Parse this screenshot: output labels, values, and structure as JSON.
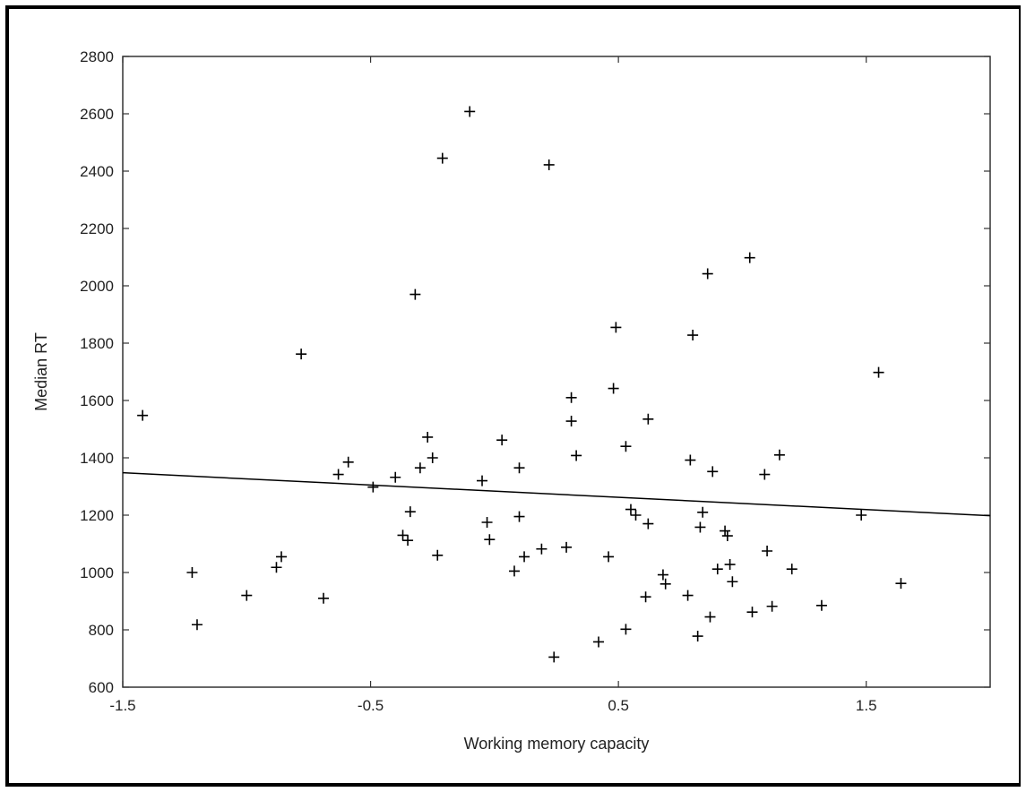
{
  "chart_data": {
    "type": "scatter",
    "title": "",
    "xlabel": "Working memory capacity",
    "ylabel": "Median RT",
    "xlim": [
      -1.5,
      2.0
    ],
    "ylim": [
      600,
      2800
    ],
    "xticks": [
      -1.5,
      -0.5,
      0.5,
      1.5
    ],
    "xtick_labels": [
      "-1.5",
      "-0.5",
      "0.5",
      "1.5"
    ],
    "yticks": [
      600,
      800,
      1000,
      1200,
      1400,
      1600,
      1800,
      2000,
      2200,
      2400,
      2600,
      2800
    ],
    "ytick_labels": [
      "600",
      "800",
      "1000",
      "1200",
      "1400",
      "1600",
      "1800",
      "2000",
      "2200",
      "2400",
      "2600",
      "2800"
    ],
    "grid": false,
    "marker": "+",
    "colors": {
      "ink": "#000000",
      "axis": "#333333"
    },
    "fit_line": {
      "x": [
        -1.5,
        2.0
      ],
      "y": [
        1348,
        1198
      ]
    },
    "points": [
      {
        "x": -1.42,
        "y": 1548
      },
      {
        "x": -1.22,
        "y": 1000
      },
      {
        "x": -1.2,
        "y": 818
      },
      {
        "x": -1.0,
        "y": 920
      },
      {
        "x": -0.88,
        "y": 1018
      },
      {
        "x": -0.86,
        "y": 1055
      },
      {
        "x": -0.78,
        "y": 1762
      },
      {
        "x": -0.69,
        "y": 910
      },
      {
        "x": -0.63,
        "y": 1342
      },
      {
        "x": -0.59,
        "y": 1385
      },
      {
        "x": -0.49,
        "y": 1298
      },
      {
        "x": -0.4,
        "y": 1332
      },
      {
        "x": -0.37,
        "y": 1130
      },
      {
        "x": -0.35,
        "y": 1112
      },
      {
        "x": -0.34,
        "y": 1212
      },
      {
        "x": -0.32,
        "y": 1970
      },
      {
        "x": -0.3,
        "y": 1365
      },
      {
        "x": -0.27,
        "y": 1472
      },
      {
        "x": -0.25,
        "y": 1400
      },
      {
        "x": -0.23,
        "y": 1060
      },
      {
        "x": -0.21,
        "y": 2445
      },
      {
        "x": -0.1,
        "y": 2608
      },
      {
        "x": -0.05,
        "y": 1320
      },
      {
        "x": -0.03,
        "y": 1175
      },
      {
        "x": -0.02,
        "y": 1115
      },
      {
        "x": 0.03,
        "y": 1462
      },
      {
        "x": 0.08,
        "y": 1005
      },
      {
        "x": 0.1,
        "y": 1365
      },
      {
        "x": 0.1,
        "y": 1195
      },
      {
        "x": 0.12,
        "y": 1055
      },
      {
        "x": 0.19,
        "y": 1082
      },
      {
        "x": 0.22,
        "y": 2422
      },
      {
        "x": 0.24,
        "y": 705
      },
      {
        "x": 0.29,
        "y": 1088
      },
      {
        "x": 0.31,
        "y": 1610
      },
      {
        "x": 0.31,
        "y": 1528
      },
      {
        "x": 0.33,
        "y": 1408
      },
      {
        "x": 0.42,
        "y": 758
      },
      {
        "x": 0.46,
        "y": 1055
      },
      {
        "x": 0.48,
        "y": 1642
      },
      {
        "x": 0.49,
        "y": 1855
      },
      {
        "x": 0.53,
        "y": 1440
      },
      {
        "x": 0.53,
        "y": 802
      },
      {
        "x": 0.55,
        "y": 1220
      },
      {
        "x": 0.57,
        "y": 1200
      },
      {
        "x": 0.61,
        "y": 915
      },
      {
        "x": 0.62,
        "y": 1535
      },
      {
        "x": 0.62,
        "y": 1170
      },
      {
        "x": 0.68,
        "y": 992
      },
      {
        "x": 0.69,
        "y": 960
      },
      {
        "x": 0.78,
        "y": 920
      },
      {
        "x": 0.79,
        "y": 1392
      },
      {
        "x": 0.8,
        "y": 1828
      },
      {
        "x": 0.82,
        "y": 778
      },
      {
        "x": 0.83,
        "y": 1158
      },
      {
        "x": 0.84,
        "y": 1210
      },
      {
        "x": 0.86,
        "y": 2042
      },
      {
        "x": 0.87,
        "y": 845
      },
      {
        "x": 0.88,
        "y": 1352
      },
      {
        "x": 0.9,
        "y": 1012
      },
      {
        "x": 0.93,
        "y": 1145
      },
      {
        "x": 0.94,
        "y": 1128
      },
      {
        "x": 0.95,
        "y": 1028
      },
      {
        "x": 0.96,
        "y": 968
      },
      {
        "x": 1.03,
        "y": 2098
      },
      {
        "x": 1.04,
        "y": 862
      },
      {
        "x": 1.09,
        "y": 1342
      },
      {
        "x": 1.1,
        "y": 1075
      },
      {
        "x": 1.12,
        "y": 882
      },
      {
        "x": 1.15,
        "y": 1410
      },
      {
        "x": 1.2,
        "y": 1012
      },
      {
        "x": 1.32,
        "y": 885
      },
      {
        "x": 1.48,
        "y": 1200
      },
      {
        "x": 1.55,
        "y": 1698
      },
      {
        "x": 1.64,
        "y": 962
      }
    ]
  }
}
